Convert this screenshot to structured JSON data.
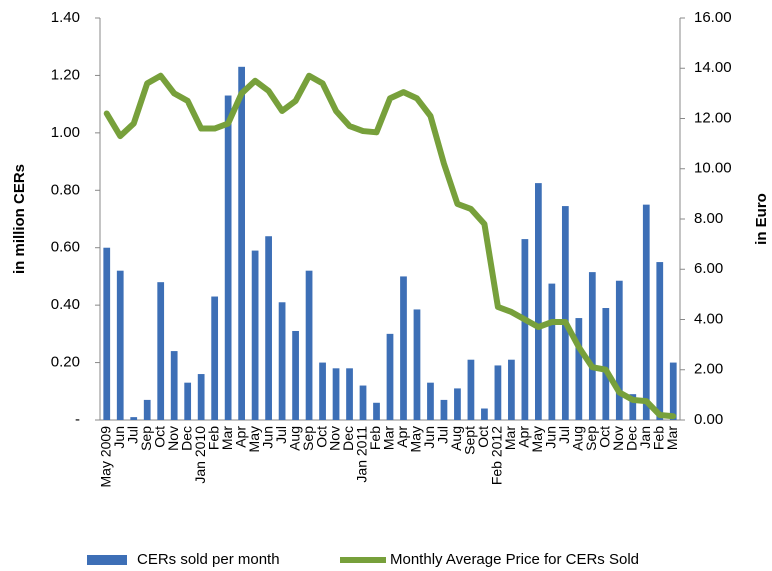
{
  "chart_data": {
    "type": "bar",
    "categories": [
      "May 2009",
      "Jun",
      "Jul",
      "Sep",
      "Oct",
      "Nov",
      "Dec",
      "Jan 2010",
      "Feb",
      "Mar",
      "Apr",
      "May",
      "Jun",
      "Jul",
      "Aug",
      "Sep",
      "Oct",
      "Nov",
      "Dec",
      "Jan 2011",
      "Feb",
      "Mar",
      "Apr",
      "May",
      "Jun",
      "Jul",
      "Aug",
      "Sept",
      "Oct",
      "Feb 2012",
      "Mar",
      "Apr",
      "May",
      "Jun",
      "Jul",
      "Aug",
      "Sep",
      "Oct",
      "Nov",
      "Dec",
      "Jan",
      "Feb",
      "Mar"
    ],
    "series": [
      {
        "name": "CERs sold per month",
        "type": "bar",
        "color": "#3d6fb6",
        "values": [
          0.6,
          0.52,
          0.01,
          0.07,
          0.48,
          0.24,
          0.13,
          0.16,
          0.43,
          1.13,
          1.23,
          0.59,
          0.64,
          0.41,
          0.31,
          0.52,
          0.2,
          0.18,
          0.18,
          0.12,
          0.06,
          0.3,
          0.5,
          0.385,
          0.13,
          0.07,
          0.11,
          0.21,
          0.04,
          0.19,
          0.21,
          0.63,
          0.825,
          0.475,
          0.745,
          0.355,
          0.515,
          0.39,
          0.485,
          0.09,
          0.75,
          0.55,
          0.2
        ]
      },
      {
        "name": "Monthly Average Price for CERs Sold",
        "type": "line",
        "axis": "y2",
        "color": "#77a03b",
        "values": [
          12.2,
          11.3,
          11.8,
          13.4,
          13.7,
          13.0,
          12.7,
          11.6,
          11.6,
          11.8,
          13.0,
          13.5,
          13.1,
          12.3,
          12.7,
          13.7,
          13.4,
          12.3,
          11.7,
          11.5,
          11.45,
          12.8,
          13.05,
          12.8,
          12.1,
          10.2,
          8.6,
          8.4,
          7.8,
          4.5,
          4.3,
          4.0,
          3.7,
          3.9,
          3.9,
          2.9,
          2.1,
          2.0,
          1.1,
          0.8,
          0.75,
          0.2,
          0.15
        ]
      }
    ],
    "ylabel": "in  million CERs",
    "y2label": "in Euro",
    "ylim": [
      0,
      1.4
    ],
    "yticks": [
      {
        "value": 0,
        "label": "-"
      },
      {
        "value": 0.2,
        "label": "0.20"
      },
      {
        "value": 0.4,
        "label": "0.40"
      },
      {
        "value": 0.6,
        "label": "0.60"
      },
      {
        "value": 0.8,
        "label": "0.80"
      },
      {
        "value": 1.0,
        "label": "1.00"
      },
      {
        "value": 1.2,
        "label": "1.20"
      },
      {
        "value": 1.4,
        "label": "1.40"
      }
    ],
    "y2lim": [
      0,
      16
    ],
    "y2ticks": [
      {
        "value": 0,
        "label": "0.00"
      },
      {
        "value": 2,
        "label": "2.00"
      },
      {
        "value": 4,
        "label": "4.00"
      },
      {
        "value": 6,
        "label": "6.00"
      },
      {
        "value": 8,
        "label": "8.00"
      },
      {
        "value": 10,
        "label": "10.00"
      },
      {
        "value": 12,
        "label": "12.00"
      },
      {
        "value": 14,
        "label": "14.00"
      },
      {
        "value": 16,
        "label": "16.00"
      }
    ],
    "legend": "bottom",
    "grid": false
  }
}
